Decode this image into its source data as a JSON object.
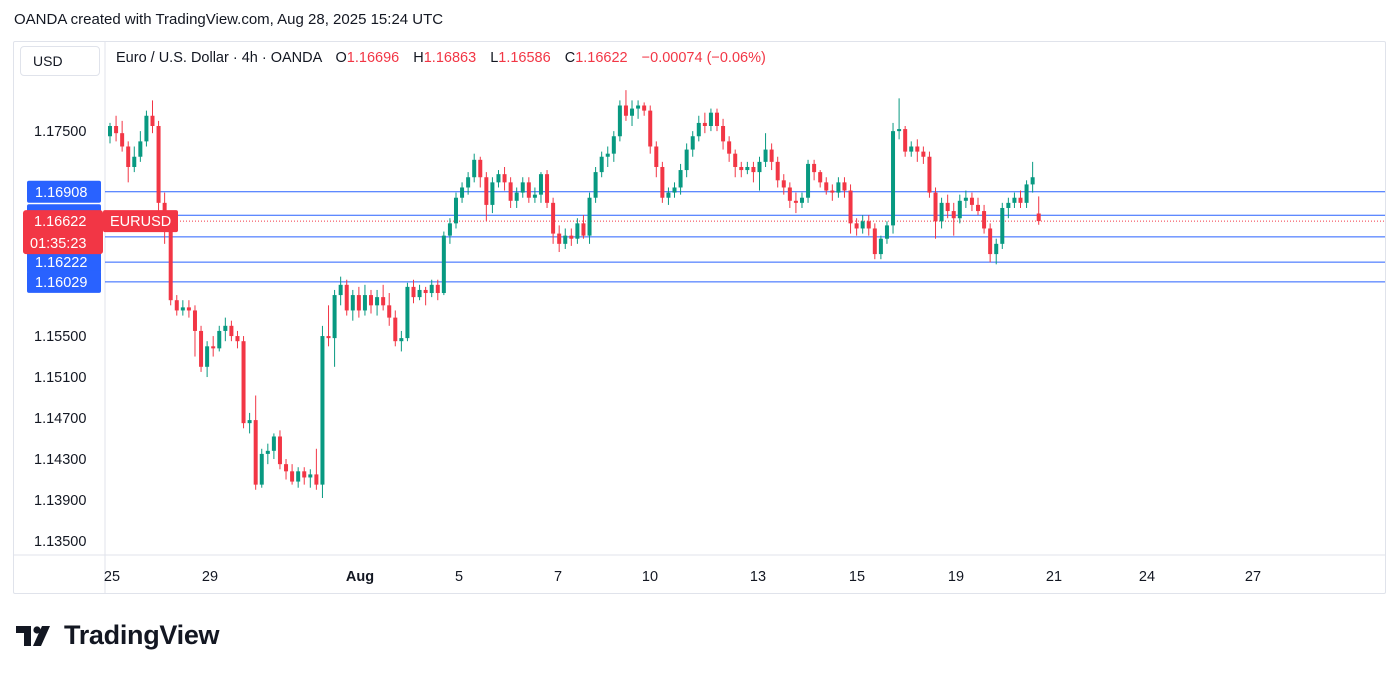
{
  "header": {
    "attribution": "OANDA created with TradingView.com, Aug 28, 2025 15:24 UTC"
  },
  "currency": "USD",
  "legend": {
    "symbol": "Euro / U.S. Dollar · 4h · OANDA",
    "open_label": "O",
    "open": "1.16696",
    "high_label": "H",
    "high": "1.16863",
    "low_label": "L",
    "low": "1.16586",
    "close_label": "C",
    "close": "1.16622",
    "change": "−0.00074 (−0.06%)"
  },
  "brand": {
    "name": "TradingView",
    "icon": "tradingview-logo-icon"
  },
  "colors": {
    "up": "#089981",
    "down": "#f23645",
    "level_line": "#2962ff",
    "label_bg": "#2962ff",
    "price_label_bg": "#f23645"
  },
  "chart_data": {
    "type": "candlestick",
    "timeframe": "4h",
    "symbol_tag": "EURUSD",
    "current_price": "1.16622",
    "countdown": "01:35:23",
    "y_ticks": [
      "1.17500",
      "1.15500",
      "1.15100",
      "1.14700",
      "1.14300",
      "1.13900",
      "1.13500"
    ],
    "level_lines": [
      "1.16908",
      "1.16679",
      "1.16468",
      "1.16222",
      "1.16029"
    ],
    "x_ticks": [
      "25",
      "29",
      "Aug",
      "5",
      "7",
      "10",
      "13",
      "15",
      "19",
      "21",
      "24",
      "27"
    ],
    "ylim": [
      1.1335,
      1.1815
    ],
    "candles": [
      [
        1.1745,
        1.1755,
        1.1738,
        1.1758
      ],
      [
        1.1755,
        1.1748,
        1.174,
        1.1765
      ],
      [
        1.1748,
        1.1735,
        1.173,
        1.176
      ],
      [
        1.1735,
        1.1715,
        1.17,
        1.174
      ],
      [
        1.1715,
        1.1725,
        1.171,
        1.1735
      ],
      [
        1.1725,
        1.174,
        1.172,
        1.175
      ],
      [
        1.174,
        1.1765,
        1.1735,
        1.177
      ],
      [
        1.1765,
        1.1755,
        1.1748,
        1.178
      ],
      [
        1.1755,
        1.168,
        1.167,
        1.176
      ],
      [
        1.168,
        1.1655,
        1.164,
        1.169
      ],
      [
        1.1655,
        1.1585,
        1.158,
        1.1665
      ],
      [
        1.1585,
        1.1575,
        1.157,
        1.159
      ],
      [
        1.1575,
        1.1578,
        1.157,
        1.1585
      ],
      [
        1.1578,
        1.1575,
        1.1568,
        1.1585
      ],
      [
        1.1575,
        1.1555,
        1.153,
        1.158
      ],
      [
        1.1555,
        1.152,
        1.1515,
        1.156
      ],
      [
        1.152,
        1.154,
        1.151,
        1.1545
      ],
      [
        1.154,
        1.1538,
        1.153,
        1.155
      ],
      [
        1.1538,
        1.1555,
        1.1535,
        1.156
      ],
      [
        1.1555,
        1.156,
        1.1545,
        1.1568
      ],
      [
        1.156,
        1.155,
        1.1545,
        1.1565
      ],
      [
        1.155,
        1.1545,
        1.1538,
        1.1555
      ],
      [
        1.1545,
        1.1465,
        1.146,
        1.155
      ],
      [
        1.1465,
        1.1468,
        1.1455,
        1.1475
      ],
      [
        1.1468,
        1.1405,
        1.14,
        1.1492
      ],
      [
        1.1405,
        1.1435,
        1.1402,
        1.144
      ],
      [
        1.1435,
        1.1438,
        1.1425,
        1.1445
      ],
      [
        1.1438,
        1.1452,
        1.143,
        1.1455
      ],
      [
        1.1452,
        1.1425,
        1.142,
        1.1458
      ],
      [
        1.1425,
        1.1418,
        1.141,
        1.143
      ],
      [
        1.1418,
        1.1408,
        1.1405,
        1.1425
      ],
      [
        1.1408,
        1.1418,
        1.1402,
        1.1422
      ],
      [
        1.1418,
        1.1412,
        1.1405,
        1.1422
      ],
      [
        1.1412,
        1.1415,
        1.1402,
        1.142
      ],
      [
        1.1415,
        1.1405,
        1.14,
        1.144
      ],
      [
        1.1405,
        1.155,
        1.1392,
        1.156
      ],
      [
        1.155,
        1.1548,
        1.154,
        1.158
      ],
      [
        1.1548,
        1.159,
        1.152,
        1.1595
      ],
      [
        1.159,
        1.16,
        1.158,
        1.1608
      ],
      [
        1.16,
        1.1575,
        1.157,
        1.1605
      ],
      [
        1.1575,
        1.159,
        1.1565,
        1.1595
      ],
      [
        1.159,
        1.1575,
        1.1568,
        1.1598
      ],
      [
        1.1575,
        1.159,
        1.157,
        1.16
      ],
      [
        1.159,
        1.158,
        1.1572,
        1.1595
      ],
      [
        1.158,
        1.1588,
        1.157,
        1.1595
      ],
      [
        1.1588,
        1.158,
        1.1575,
        1.16
      ],
      [
        1.158,
        1.1568,
        1.156,
        1.1592
      ],
      [
        1.1568,
        1.1545,
        1.154,
        1.1575
      ],
      [
        1.1545,
        1.1548,
        1.1535,
        1.1555
      ],
      [
        1.1548,
        1.1598,
        1.1545,
        1.1602
      ],
      [
        1.1598,
        1.1588,
        1.1582,
        1.1605
      ],
      [
        1.1588,
        1.1595,
        1.1585,
        1.16
      ],
      [
        1.1595,
        1.1592,
        1.158,
        1.1598
      ],
      [
        1.1592,
        1.16,
        1.1588,
        1.1605
      ],
      [
        1.16,
        1.1592,
        1.1585,
        1.1605
      ],
      [
        1.1592,
        1.1648,
        1.159,
        1.1652
      ],
      [
        1.1648,
        1.166,
        1.164,
        1.1665
      ],
      [
        1.166,
        1.1685,
        1.1655,
        1.169
      ],
      [
        1.1685,
        1.1695,
        1.168,
        1.17
      ],
      [
        1.1695,
        1.1705,
        1.1688,
        1.171
      ],
      [
        1.1705,
        1.1722,
        1.17,
        1.1728
      ],
      [
        1.1722,
        1.1705,
        1.1695,
        1.1725
      ],
      [
        1.1705,
        1.1678,
        1.1662,
        1.171
      ],
      [
        1.1678,
        1.17,
        1.167,
        1.1705
      ],
      [
        1.17,
        1.1708,
        1.1695,
        1.1712
      ],
      [
        1.1708,
        1.17,
        1.1692,
        1.1715
      ],
      [
        1.17,
        1.1682,
        1.1675,
        1.1705
      ],
      [
        1.1682,
        1.169,
        1.1675,
        1.1695
      ],
      [
        1.169,
        1.17,
        1.1685,
        1.1705
      ],
      [
        1.17,
        1.1685,
        1.168,
        1.1705
      ],
      [
        1.1685,
        1.1688,
        1.168,
        1.1695
      ],
      [
        1.1688,
        1.1708,
        1.168,
        1.171
      ],
      [
        1.1708,
        1.168,
        1.1675,
        1.1712
      ],
      [
        1.168,
        1.165,
        1.164,
        1.1685
      ],
      [
        1.165,
        1.164,
        1.1632,
        1.1658
      ],
      [
        1.164,
        1.1648,
        1.1635,
        1.1655
      ],
      [
        1.1648,
        1.1645,
        1.1638,
        1.1655
      ],
      [
        1.1645,
        1.166,
        1.164,
        1.1665
      ],
      [
        1.166,
        1.1648,
        1.1645,
        1.1668
      ],
      [
        1.1648,
        1.1685,
        1.164,
        1.169
      ],
      [
        1.1685,
        1.171,
        1.168,
        1.1715
      ],
      [
        1.171,
        1.1725,
        1.1705,
        1.173
      ],
      [
        1.1725,
        1.1728,
        1.1715,
        1.1735
      ],
      [
        1.1728,
        1.1745,
        1.172,
        1.175
      ],
      [
        1.1745,
        1.1775,
        1.174,
        1.178
      ],
      [
        1.1775,
        1.1765,
        1.176,
        1.179
      ],
      [
        1.1765,
        1.1772,
        1.1755,
        1.178
      ],
      [
        1.1772,
        1.1775,
        1.1762,
        1.178
      ],
      [
        1.1775,
        1.177,
        1.1765,
        1.1778
      ],
      [
        1.177,
        1.1735,
        1.1728,
        1.1775
      ],
      [
        1.1735,
        1.1715,
        1.1705,
        1.174
      ],
      [
        1.1715,
        1.1685,
        1.168,
        1.172
      ],
      [
        1.1685,
        1.169,
        1.1678,
        1.1695
      ],
      [
        1.169,
        1.1695,
        1.1685,
        1.17
      ],
      [
        1.1695,
        1.1712,
        1.1688,
        1.1718
      ],
      [
        1.1712,
        1.1732,
        1.1705,
        1.1738
      ],
      [
        1.1732,
        1.1745,
        1.1725,
        1.175
      ],
      [
        1.1745,
        1.1758,
        1.174,
        1.1765
      ],
      [
        1.1758,
        1.1755,
        1.1748,
        1.1768
      ],
      [
        1.1755,
        1.1768,
        1.175,
        1.1772
      ],
      [
        1.1768,
        1.1755,
        1.175,
        1.1772
      ],
      [
        1.1755,
        1.174,
        1.1732,
        1.1762
      ],
      [
        1.174,
        1.1728,
        1.172,
        1.1745
      ],
      [
        1.1728,
        1.1715,
        1.1705,
        1.1732
      ],
      [
        1.1715,
        1.1712,
        1.1705,
        1.172
      ],
      [
        1.1712,
        1.1715,
        1.1708,
        1.172
      ],
      [
        1.1715,
        1.171,
        1.17,
        1.172
      ],
      [
        1.171,
        1.172,
        1.1692,
        1.1725
      ],
      [
        1.172,
        1.1732,
        1.1715,
        1.1748
      ],
      [
        1.1732,
        1.172,
        1.1712,
        1.1738
      ],
      [
        1.172,
        1.1702,
        1.1695,
        1.1725
      ],
      [
        1.1702,
        1.1695,
        1.1688,
        1.1708
      ],
      [
        1.1695,
        1.1682,
        1.1675,
        1.17
      ],
      [
        1.1682,
        1.168,
        1.167,
        1.169
      ],
      [
        1.168,
        1.1685,
        1.1675,
        1.169
      ],
      [
        1.1685,
        1.1718,
        1.168,
        1.1722
      ],
      [
        1.1718,
        1.171,
        1.1702,
        1.1722
      ],
      [
        1.171,
        1.17,
        1.1695,
        1.1712
      ],
      [
        1.17,
        1.1692,
        1.1688,
        1.1705
      ],
      [
        1.1692,
        1.169,
        1.1682,
        1.1698
      ],
      [
        1.169,
        1.17,
        1.1685,
        1.1705
      ],
      [
        1.17,
        1.1692,
        1.1685,
        1.1705
      ],
      [
        1.1692,
        1.166,
        1.165,
        1.1698
      ],
      [
        1.166,
        1.1655,
        1.1648,
        1.1665
      ],
      [
        1.1655,
        1.1662,
        1.165,
        1.1668
      ],
      [
        1.1662,
        1.1655,
        1.1648,
        1.1668
      ],
      [
        1.1655,
        1.163,
        1.1625,
        1.166
      ],
      [
        1.163,
        1.1645,
        1.1625,
        1.1648
      ],
      [
        1.1645,
        1.1658,
        1.164,
        1.1662
      ],
      [
        1.1658,
        1.175,
        1.165,
        1.1758
      ],
      [
        1.175,
        1.1752,
        1.1742,
        1.1782
      ],
      [
        1.1752,
        1.173,
        1.1725,
        1.1755
      ],
      [
        1.173,
        1.1735,
        1.1725,
        1.174
      ],
      [
        1.1735,
        1.173,
        1.172,
        1.1742
      ],
      [
        1.173,
        1.1725,
        1.1718,
        1.1735
      ],
      [
        1.1725,
        1.169,
        1.1685,
        1.173
      ],
      [
        1.169,
        1.1662,
        1.1645,
        1.1695
      ],
      [
        1.1662,
        1.168,
        1.1655,
        1.1685
      ],
      [
        1.168,
        1.1672,
        1.1665,
        1.1688
      ],
      [
        1.1672,
        1.1665,
        1.1648,
        1.168
      ],
      [
        1.1665,
        1.1682,
        1.166,
        1.1688
      ],
      [
        1.1682,
        1.1685,
        1.1675,
        1.1692
      ],
      [
        1.1685,
        1.1678,
        1.1672,
        1.169
      ],
      [
        1.1678,
        1.1672,
        1.1668,
        1.1685
      ],
      [
        1.1672,
        1.1655,
        1.165,
        1.1678
      ],
      [
        1.1655,
        1.163,
        1.1622,
        1.166
      ],
      [
        1.163,
        1.164,
        1.162,
        1.1645
      ],
      [
        1.164,
        1.1675,
        1.1635,
        1.168
      ],
      [
        1.1675,
        1.168,
        1.1665,
        1.1685
      ],
      [
        1.168,
        1.1685,
        1.1675,
        1.169
      ],
      [
        1.1685,
        1.168,
        1.1675,
        1.1692
      ],
      [
        1.168,
        1.1698,
        1.1675,
        1.1702
      ],
      [
        1.1698,
        1.1705,
        1.169,
        1.172
      ],
      [
        1.16696,
        1.16622,
        1.16586,
        1.16863
      ]
    ]
  }
}
